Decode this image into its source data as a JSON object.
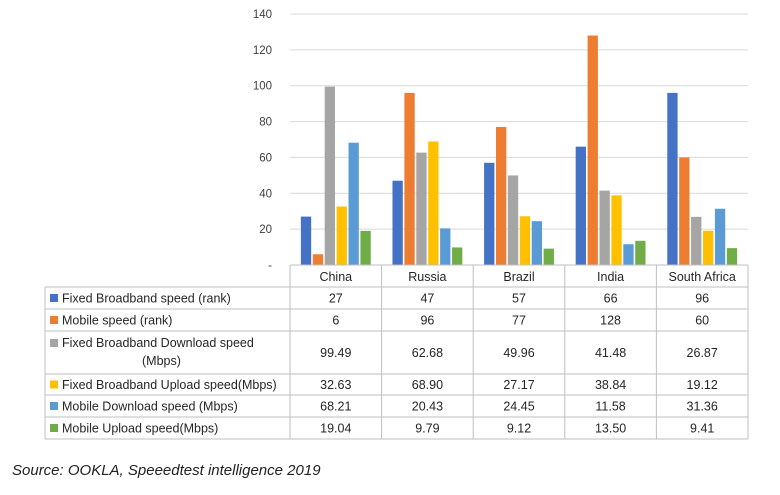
{
  "chart_data": {
    "type": "bar",
    "categories": [
      "China",
      "Russia",
      "Brazil",
      "India",
      "South Africa"
    ],
    "y_ticks": [
      "-",
      "20",
      "40",
      "60",
      "80",
      "100",
      "120",
      "140"
    ],
    "ylim": [
      0,
      140
    ],
    "grid": true,
    "legend_placement": "data table rows (left)",
    "series": [
      {
        "name": "Fixed Broadband speed (rank)",
        "color": "#4472C4",
        "values": [
          27,
          47,
          57,
          66,
          96
        ],
        "labels": [
          "27",
          "47",
          "57",
          "66",
          "96"
        ]
      },
      {
        "name": "Mobile speed (rank)",
        "color": "#ED7D31",
        "values": [
          6,
          96,
          77,
          128,
          60
        ],
        "labels": [
          "6",
          "96",
          "77",
          "128",
          "60"
        ]
      },
      {
        "name": "Fixed Broadband Download speed (Mbps)",
        "color": "#A5A5A5",
        "name_lines": [
          "Fixed Broadband Download speed",
          "(Mbps)"
        ],
        "values": [
          99.49,
          62.68,
          49.96,
          41.48,
          26.87
        ],
        "labels": [
          "99.49",
          "62.68",
          "49.96",
          "41.48",
          "26.87"
        ]
      },
      {
        "name": "Fixed Broadband Upload speed(Mbps)",
        "color": "#FFC000",
        "values": [
          32.63,
          68.9,
          27.17,
          38.84,
          19.12
        ],
        "labels": [
          "32.63",
          "68.90",
          "27.17",
          "38.84",
          "19.12"
        ]
      },
      {
        "name": "Mobile Download speed (Mbps)",
        "color": "#5B9BD5",
        "values": [
          68.21,
          20.43,
          24.45,
          11.58,
          31.36
        ],
        "labels": [
          "68.21",
          "20.43",
          "24.45",
          "11.58",
          "31.36"
        ]
      },
      {
        "name": "Mobile Upload speed(Mbps)",
        "color": "#70AD47",
        "values": [
          19.04,
          9.79,
          9.12,
          13.5,
          9.41
        ],
        "labels": [
          "19.04",
          "9.79",
          "9.12",
          "13.50",
          "9.41"
        ]
      }
    ]
  },
  "source": "Source: OOKLA, Speeedtest intelligence 2019"
}
